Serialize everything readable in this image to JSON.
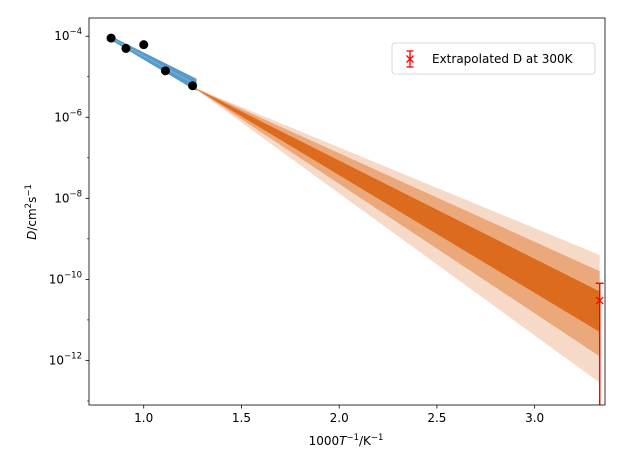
{
  "chart_data": {
    "type": "scatter",
    "xlabel_prefix": "1000",
    "xlabel_var": "T",
    "xlabel_sup": "−1",
    "xlabel_suffix": "/K",
    "xlabel_suffix_sup": "−1",
    "ylabel_var": "D",
    "ylabel_rest": "/cm",
    "ylabel_sup1": "2",
    "ylabel_mid": "s",
    "ylabel_sup2": "−1",
    "x_scale": "linear",
    "y_scale": "log",
    "xlim": [
      0.72,
      3.36
    ],
    "ylim_log10": [
      -13.1,
      -3.55
    ],
    "x_ticks": [
      {
        "value": 1.0,
        "label": "1.0"
      },
      {
        "value": 1.5,
        "label": "1.5"
      },
      {
        "value": 2.0,
        "label": "2.0"
      },
      {
        "value": 2.5,
        "label": "2.5"
      },
      {
        "value": 3.0,
        "label": "3.0"
      }
    ],
    "y_ticks": [
      {
        "log10": -4,
        "base": "10",
        "exp": "−4"
      },
      {
        "log10": -6,
        "base": "10",
        "exp": "−6"
      },
      {
        "log10": -8,
        "base": "10",
        "exp": "−8"
      },
      {
        "log10": -10,
        "base": "10",
        "exp": "−10"
      },
      {
        "log10": -12,
        "base": "10",
        "exp": "−12"
      }
    ],
    "observed_points": {
      "x": [
        0.833,
        0.909,
        1.0,
        1.111,
        1.25
      ],
      "y": [
        9e-05,
        5e-05,
        6.2e-05,
        1.4e-05,
        6e-06
      ]
    },
    "fit_band_observed": {
      "color": "#1f77b4",
      "x": [
        0.833,
        1.27
      ],
      "upper_log10": [
        -4.0,
        -5.05
      ],
      "lower_log10": [
        -4.1,
        -5.35
      ]
    },
    "extrapolation_bands": {
      "color": "#dd6b1e",
      "x_start": 1.25,
      "x_end": 3.333,
      "start_log10": -5.25,
      "levels": [
        {
          "opacity": 0.25,
          "end_upper_log10": -9.4,
          "end_lower_log10": -12.55
        },
        {
          "opacity": 0.45,
          "end_upper_log10": -9.8,
          "end_lower_log10": -11.9
        },
        {
          "opacity": 1.0,
          "end_upper_log10": -10.3,
          "end_lower_log10": -11.3
        }
      ]
    },
    "extrapolated_point": {
      "label": "Extrapolated D at 300K",
      "x": 3.333,
      "y": 3e-11,
      "err_upper": 8e-11,
      "err_lower_clipped": true,
      "color": "#ff0000"
    },
    "legend_position": "upper right",
    "grid": false
  }
}
